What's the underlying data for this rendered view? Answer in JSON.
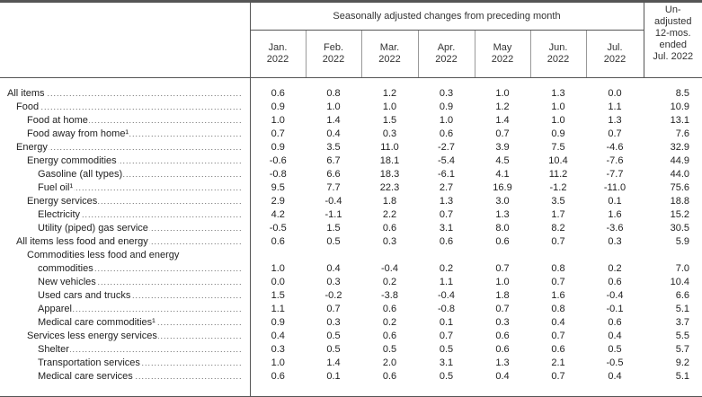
{
  "header": {
    "group_label": "Seasonally adjusted changes from preceding month",
    "unadjusted_label": [
      "Un-",
      "adjusted",
      "12-mos.",
      "ended",
      "Jul. 2022"
    ],
    "months": [
      [
        "Jan.",
        "2022"
      ],
      [
        "Feb.",
        "2022"
      ],
      [
        "Mar.",
        "2022"
      ],
      [
        "Apr.",
        "2022"
      ],
      [
        "May",
        "2022"
      ],
      [
        "Jun.",
        "2022"
      ],
      [
        "Jul.",
        "2022"
      ]
    ]
  },
  "rows": [
    {
      "label": "All  items",
      "indent": 0,
      "values": [
        "0.6",
        "0.8",
        "1.2",
        "0.3",
        "1.0",
        "1.3",
        "0.0",
        "8.5"
      ]
    },
    {
      "label": "Food",
      "indent": 1,
      "values": [
        "0.9",
        "1.0",
        "1.0",
        "0.9",
        "1.2",
        "1.0",
        "1.1",
        "10.9"
      ]
    },
    {
      "label": "Food at home",
      "indent": 2,
      "values": [
        "1.0",
        "1.4",
        "1.5",
        "1.0",
        "1.4",
        "1.0",
        "1.3",
        "13.1"
      ]
    },
    {
      "label": "Food away from home¹",
      "indent": 2,
      "values": [
        "0.7",
        "0.4",
        "0.3",
        "0.6",
        "0.7",
        "0.9",
        "0.7",
        "7.6"
      ]
    },
    {
      "label": "Energy",
      "indent": 1,
      "values": [
        "0.9",
        "3.5",
        "11.0",
        "-2.7",
        "3.9",
        "7.5",
        "-4.6",
        "32.9"
      ]
    },
    {
      "label": "Energy commodities",
      "indent": 2,
      "values": [
        "-0.6",
        "6.7",
        "18.1",
        "-5.4",
        "4.5",
        "10.4",
        "-7.6",
        "44.9"
      ]
    },
    {
      "label": "Gasoline (all types)",
      "indent": 3,
      "values": [
        "-0.8",
        "6.6",
        "18.3",
        "-6.1",
        "4.1",
        "11.2",
        "-7.7",
        "44.0"
      ]
    },
    {
      "label": "Fuel oil¹",
      "indent": 3,
      "values": [
        "9.5",
        "7.7",
        "22.3",
        "2.7",
        "16.9",
        "-1.2",
        "-11.0",
        "75.6"
      ]
    },
    {
      "label": "Energy services",
      "indent": 2,
      "values": [
        "2.9",
        "-0.4",
        "1.8",
        "1.3",
        "3.0",
        "3.5",
        "0.1",
        "18.8"
      ]
    },
    {
      "label": "Electricity",
      "indent": 3,
      "values": [
        "4.2",
        "-1.1",
        "2.2",
        "0.7",
        "1.3",
        "1.7",
        "1.6",
        "15.2"
      ]
    },
    {
      "label": "Utility (piped) gas service",
      "indent": 3,
      "values": [
        "-0.5",
        "1.5",
        "0.6",
        "3.1",
        "8.0",
        "8.2",
        "-3.6",
        "30.5"
      ]
    },
    {
      "label": "All items less food and energy",
      "indent": 1,
      "values": [
        "0.6",
        "0.5",
        "0.3",
        "0.6",
        "0.6",
        "0.7",
        "0.3",
        "5.9"
      ]
    },
    {
      "label": "Commodities less food and energy",
      "indent": 2,
      "values": []
    },
    {
      "label": "commodities",
      "indent": 3,
      "values": [
        "1.0",
        "0.4",
        "-0.4",
        "0.2",
        "0.7",
        "0.8",
        "0.2",
        "7.0"
      ]
    },
    {
      "label": "New vehicles",
      "indent": 3,
      "values": [
        "0.0",
        "0.3",
        "0.2",
        "1.1",
        "1.0",
        "0.7",
        "0.6",
        "10.4"
      ]
    },
    {
      "label": "Used cars and trucks",
      "indent": 3,
      "values": [
        "1.5",
        "-0.2",
        "-3.8",
        "-0.4",
        "1.8",
        "1.6",
        "-0.4",
        "6.6"
      ]
    },
    {
      "label": "Apparel",
      "indent": 3,
      "values": [
        "1.1",
        "0.7",
        "0.6",
        "-0.8",
        "0.7",
        "0.8",
        "-0.1",
        "5.1"
      ]
    },
    {
      "label": "Medical  care  commodities¹",
      "indent": 3,
      "values": [
        "0.9",
        "0.3",
        "0.2",
        "0.1",
        "0.3",
        "0.4",
        "0.6",
        "3.7"
      ]
    },
    {
      "label": "Services less energy services",
      "indent": 2,
      "values": [
        "0.4",
        "0.5",
        "0.6",
        "0.7",
        "0.6",
        "0.7",
        "0.4",
        "5.5"
      ]
    },
    {
      "label": "Shelter",
      "indent": 3,
      "values": [
        "0.3",
        "0.5",
        "0.5",
        "0.5",
        "0.6",
        "0.6",
        "0.5",
        "5.7"
      ]
    },
    {
      "label": "Transportation services",
      "indent": 3,
      "values": [
        "1.0",
        "1.4",
        "2.0",
        "3.1",
        "1.3",
        "2.1",
        "-0.5",
        "9.2"
      ]
    },
    {
      "label": "Medical care services",
      "indent": 3,
      "values": [
        "0.6",
        "0.1",
        "0.6",
        "0.5",
        "0.4",
        "0.7",
        "0.4",
        "5.1"
      ]
    }
  ]
}
